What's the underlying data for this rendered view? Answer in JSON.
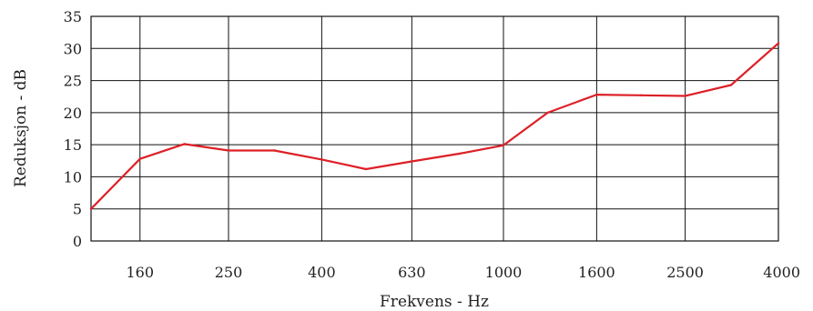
{
  "chart_data": {
    "type": "line",
    "xlabel": "Frekvens - Hz",
    "ylabel": "Reduksjon - dB",
    "ylim": [
      0,
      35
    ],
    "yticks": [
      "0",
      "5",
      "10",
      "15",
      "20",
      "25",
      "30",
      "35"
    ],
    "xticks": [
      "160",
      "250",
      "400",
      "630",
      "1000",
      "1600",
      "2500",
      "4000"
    ],
    "grid": true,
    "line_color": "#dd2027",
    "series": [
      {
        "x": [
          125,
          160,
          200,
          250,
          315,
          400,
          500,
          630,
          800,
          1000,
          1250,
          1600,
          2000,
          2500,
          3150,
          4000
        ],
        "values": [
          5,
          12.8,
          15.1,
          14.1,
          14.1,
          12.7,
          11.2,
          12.4,
          13.6,
          14.9,
          20.0,
          22.8,
          22.7,
          22.6,
          24.3,
          30.8
        ]
      }
    ]
  }
}
